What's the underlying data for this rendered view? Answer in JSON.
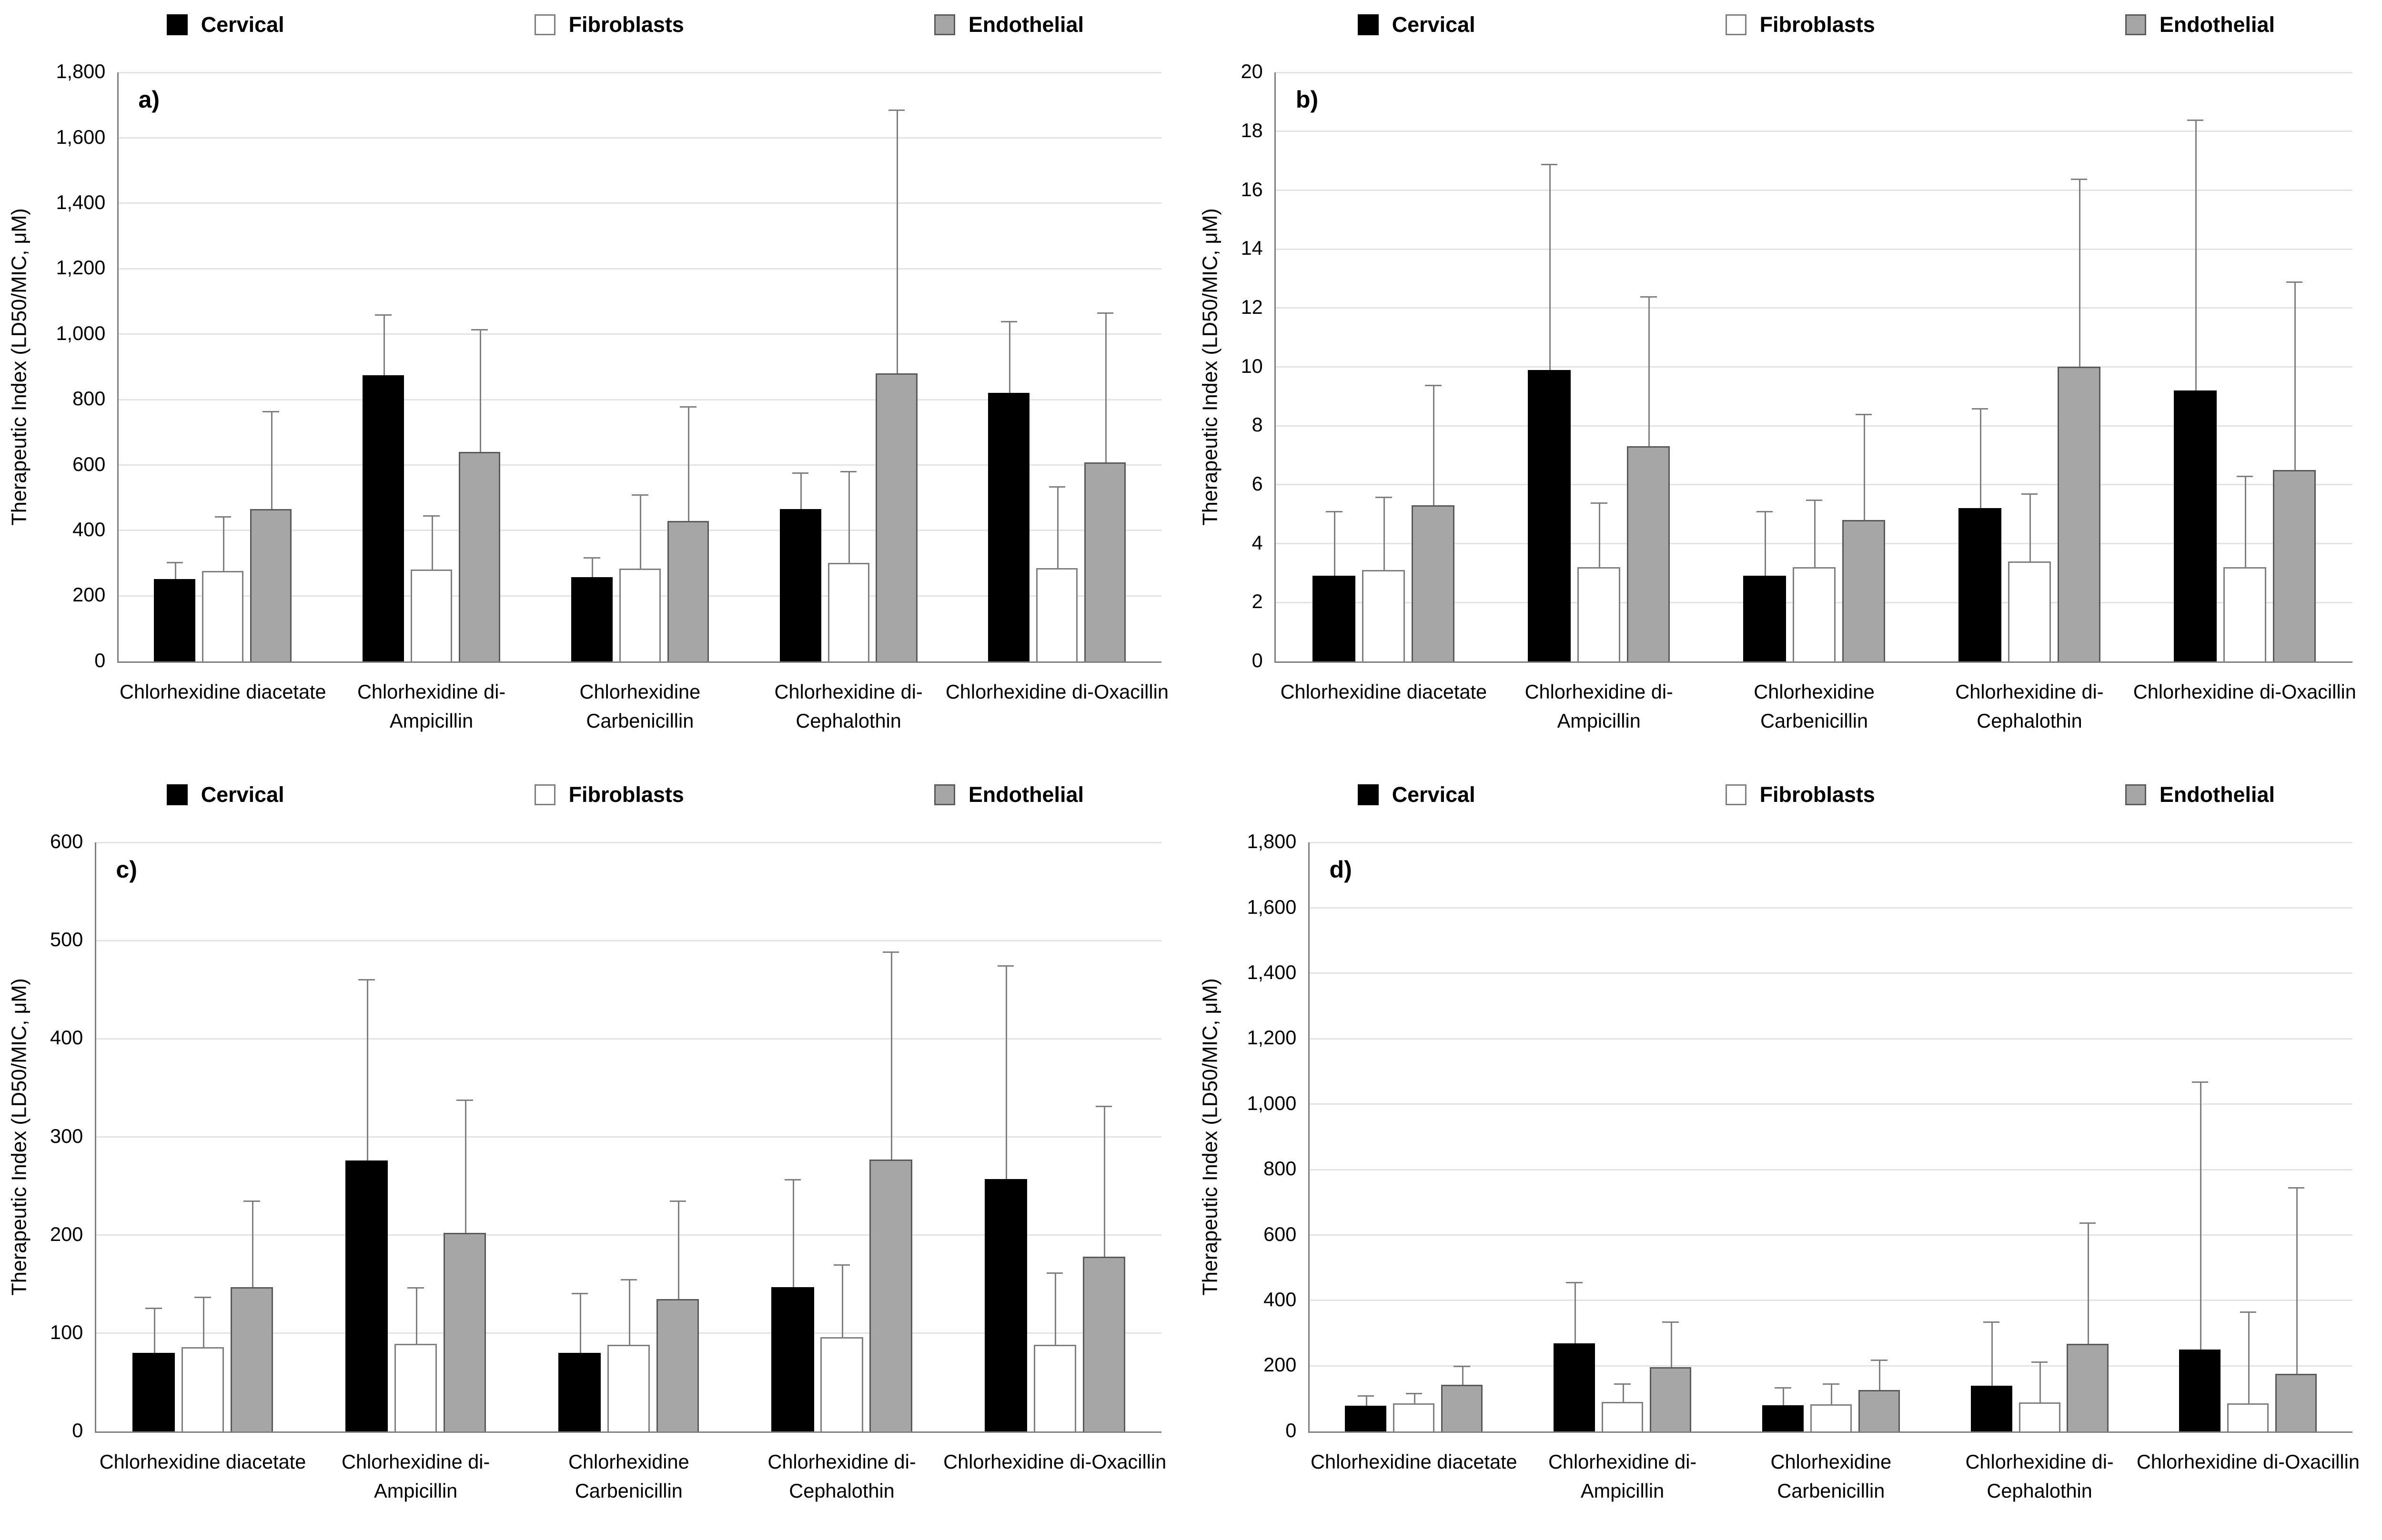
{
  "figure": {
    "ylabel": "Therapeutic Index (LD50/MIC, μM)",
    "categories": [
      "Chlorhexidine diacetate",
      "Chlorhexidine di-Ampicillin",
      "Chlorhexidine Carbenicillin",
      "Chlorhexidine di-Cephalothin",
      "Chlorhexidine di-Oxacillin"
    ],
    "series": [
      {
        "key": "cervical",
        "name": "Cervical",
        "fill": "#000000",
        "border": "#000000"
      },
      {
        "key": "fibroblasts",
        "name": "Fibroblasts",
        "fill": "#ffffff",
        "border": "#7f7f7f"
      },
      {
        "key": "endothelial",
        "name": "Endothelial",
        "fill": "#a6a6a6",
        "border": "#595959"
      }
    ],
    "colors": {
      "error_bar": "#7f7f7f",
      "gridline": "#e3e3e3",
      "axis": "#7f7f7f"
    }
  },
  "chart_data": [
    {
      "type": "bar",
      "id": "a",
      "panel_label": "a)",
      "ylabel": "Therapeutic Index (LD50/MIC, μM)",
      "xlabel": "",
      "ylim": [
        0,
        1800
      ],
      "ystep": 200,
      "ytick_labels": [
        "0",
        "200",
        "400",
        "600",
        "800",
        "1,000",
        "1,200",
        "1,400",
        "1,600",
        "1,800"
      ],
      "grid": true,
      "legend_position": "top",
      "categories": [
        "Chlorhexidine diacetate",
        "Chlorhexidine di-Ampicillin",
        "Chlorhexidine Carbenicillin",
        "Chlorhexidine di-Cephalothin",
        "Chlorhexidine di-Oxacillin"
      ],
      "series": [
        {
          "name": "Cervical",
          "values": [
            252,
            875,
            258,
            465,
            820
          ],
          "errors_plus": [
            52,
            186,
            60,
            112,
            220
          ]
        },
        {
          "name": "Fibroblasts",
          "values": [
            276,
            281,
            283,
            301,
            285
          ],
          "errors_plus": [
            168,
            166,
            227,
            281,
            250
          ]
        },
        {
          "name": "Endothelial",
          "values": [
            466,
            640,
            429,
            880,
            608
          ],
          "errors_plus": [
            299,
            375,
            351,
            807,
            458
          ]
        }
      ]
    },
    {
      "type": "bar",
      "id": "b",
      "panel_label": "b)",
      "ylabel": "Therapeutic Index (LD50/MIC, μM)",
      "xlabel": "",
      "ylim": [
        0,
        20
      ],
      "ystep": 2,
      "ytick_labels": [
        "0",
        "2",
        "4",
        "6",
        "8",
        "10",
        "12",
        "14",
        "16",
        "18",
        "20"
      ],
      "grid": true,
      "legend_position": "top",
      "categories": [
        "Chlorhexidine diacetate",
        "Chlorhexidine di-Ampicillin",
        "Chlorhexidine Carbenicillin",
        "Chlorhexidine di-Cephalothin",
        "Chlorhexidine di-Oxacillin"
      ],
      "series": [
        {
          "name": "Cervical",
          "values": [
            2.9,
            9.9,
            2.9,
            5.2,
            9.2
          ],
          "errors_plus": [
            2.2,
            7.0,
            2.2,
            3.4,
            9.2
          ]
        },
        {
          "name": "Fibroblasts",
          "values": [
            3.1,
            3.2,
            3.2,
            3.4,
            3.2
          ],
          "errors_plus": [
            2.5,
            2.2,
            2.3,
            2.3,
            3.1
          ]
        },
        {
          "name": "Endothelial",
          "values": [
            5.3,
            7.3,
            4.8,
            10.0,
            6.5
          ],
          "errors_plus": [
            4.1,
            5.1,
            3.6,
            6.4,
            6.4
          ]
        }
      ]
    },
    {
      "type": "bar",
      "id": "c",
      "panel_label": "c)",
      "ylabel": "Therapeutic Index (LD50/MIC, μM)",
      "xlabel": "",
      "ylim": [
        0,
        600
      ],
      "ystep": 100,
      "ytick_labels": [
        "0",
        "100",
        "200",
        "300",
        "400",
        "500",
        "600"
      ],
      "grid": true,
      "legend_position": "top",
      "categories": [
        "Chlorhexidine diacetate",
        "Chlorhexidine di-Ampicillin",
        "Chlorhexidine Carbenicillin",
        "Chlorhexidine di-Cephalothin",
        "Chlorhexidine di-Oxacillin"
      ],
      "series": [
        {
          "name": "Cervical",
          "values": [
            80,
            276,
            80,
            147,
            257
          ],
          "errors_plus": [
            46,
            185,
            61,
            110,
            218
          ]
        },
        {
          "name": "Fibroblasts",
          "values": [
            86,
            89,
            88,
            96,
            88
          ],
          "errors_plus": [
            51,
            58,
            67,
            74,
            74
          ]
        },
        {
          "name": "Endothelial",
          "values": [
            147,
            202,
            135,
            277,
            178
          ],
          "errors_plus": [
            88,
            136,
            100,
            212,
            154
          ]
        }
      ]
    },
    {
      "type": "bar",
      "id": "d",
      "panel_label": "d)",
      "ylabel": "Therapeutic Index (LD50/MIC, μM)",
      "xlabel": "",
      "ylim": [
        0,
        1800
      ],
      "ystep": 200,
      "ytick_labels": [
        "0",
        "200",
        "400",
        "600",
        "800",
        "1,000",
        "1,200",
        "1,400",
        "1,600",
        "1,800"
      ],
      "grid": true,
      "legend_position": "top",
      "categories": [
        "Chlorhexidine diacetate",
        "Chlorhexidine di-Ampicillin",
        "Chlorhexidine Carbenicillin",
        "Chlorhexidine di-Cephalothin",
        "Chlorhexidine di-Oxacillin"
      ],
      "series": [
        {
          "name": "Cervical",
          "values": [
            79,
            269,
            80,
            139,
            250
          ],
          "errors_plus": [
            31,
            188,
            55,
            197,
            819
          ]
        },
        {
          "name": "Fibroblasts",
          "values": [
            86,
            90,
            83,
            89,
            86
          ],
          "errors_plus": [
            31,
            56,
            63,
            125,
            281
          ]
        },
        {
          "name": "Endothelial",
          "values": [
            143,
            196,
            126,
            267,
            176
          ],
          "errors_plus": [
            57,
            140,
            93,
            372,
            571
          ]
        }
      ]
    }
  ]
}
